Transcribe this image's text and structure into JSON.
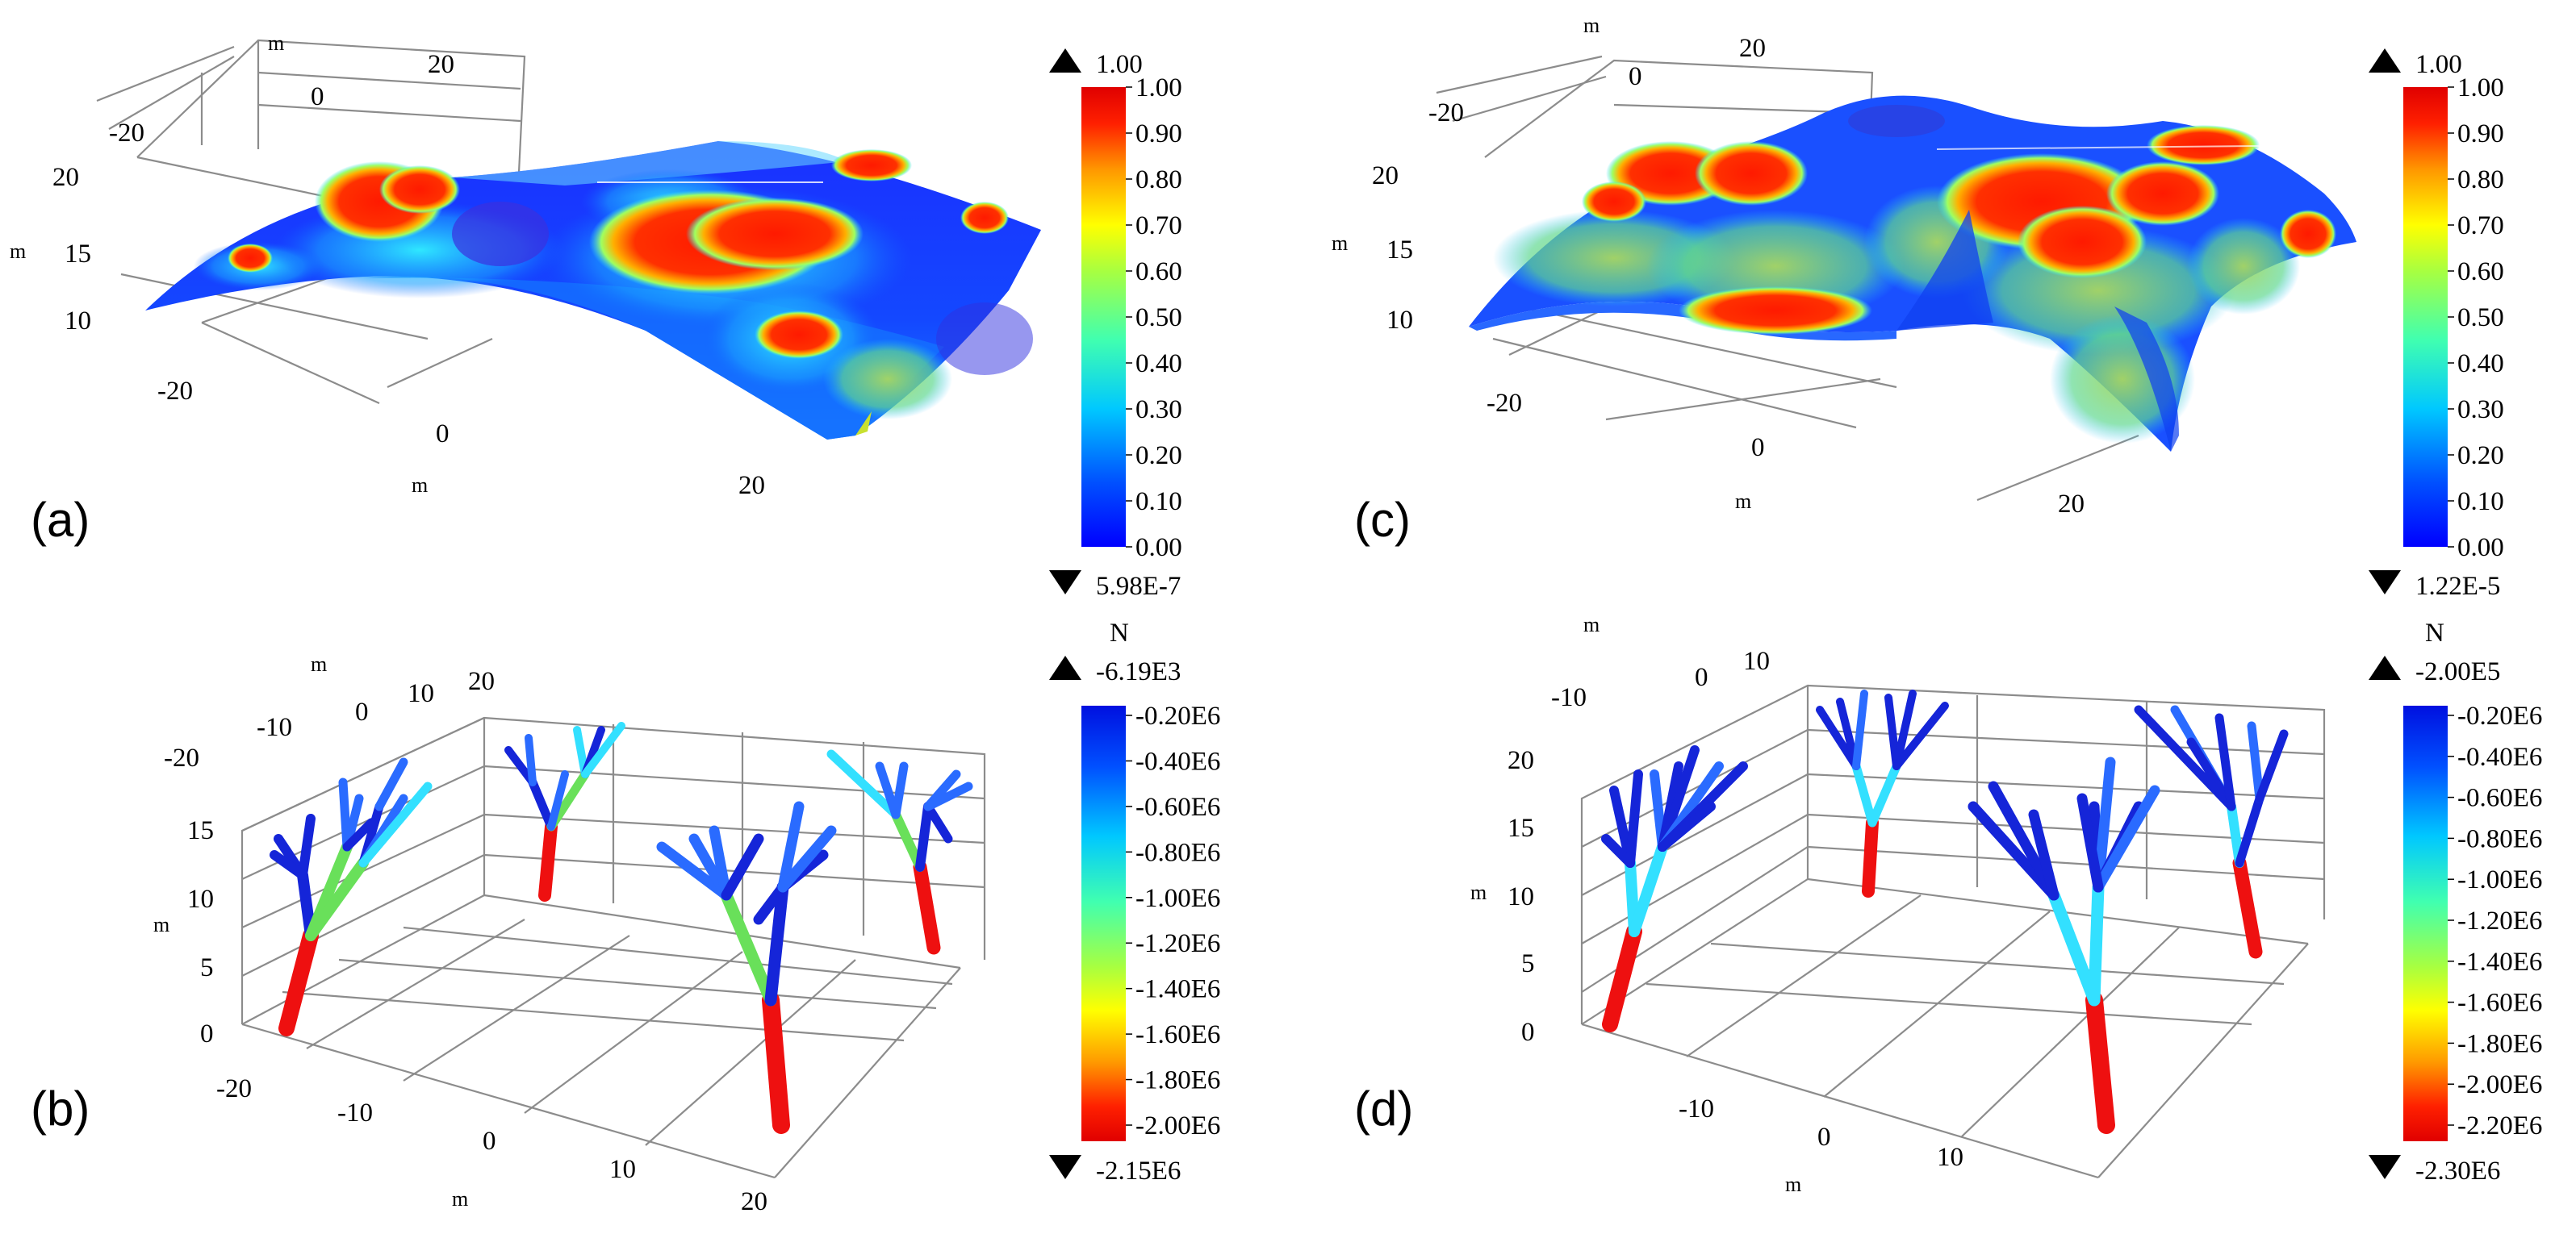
{
  "colors": {
    "jet": [
      "#00008f",
      "#0000ff",
      "#0080ff",
      "#00ffff",
      "#80ff80",
      "#ffff00",
      "#ff8000",
      "#ff0000",
      "#d40000"
    ],
    "gridline": "#8c8c8c",
    "shell_blue": "#1e3cff",
    "hot": "#ff2a00",
    "cyan": "#33e0ff",
    "green": "#69e05a",
    "mid_blue": "#2a6bff",
    "dark_blue": "#1525d8"
  },
  "panels": {
    "a": {
      "label": "(a)",
      "axes": {
        "unit": "m",
        "x_ticks": [
          "-20",
          "0",
          "20"
        ],
        "y_ticks": [
          "-20",
          "0",
          "20"
        ],
        "z_ticks": [
          "10",
          "15",
          "20"
        ]
      },
      "colorbar": {
        "unit": "",
        "top_value": "1.00",
        "bottom_value": "5.98E-7",
        "ticks": [
          "1.00",
          "0.90",
          "0.80",
          "0.70",
          "0.60",
          "0.50",
          "0.40",
          "0.30",
          "0.20",
          "0.10",
          "0.00"
        ]
      }
    },
    "b": {
      "label": "(b)",
      "axes": {
        "unit": "m",
        "x_ticks": [
          "-20",
          "-10",
          "0",
          "10",
          "20"
        ],
        "y_ticks": [
          "-20",
          "-10",
          "0",
          "10",
          "20"
        ],
        "z_ticks": [
          "0",
          "5",
          "10",
          "15"
        ]
      },
      "colorbar": {
        "unit": "N",
        "top_value": "-6.19E3",
        "bottom_value": "-2.15E6",
        "ticks": [
          "-0.20E6",
          "-0.40E6",
          "-0.60E6",
          "-0.80E6",
          "-1.00E6",
          "-1.20E6",
          "-1.40E6",
          "-1.60E6",
          "-1.80E6",
          "-2.00E6"
        ]
      }
    },
    "c": {
      "label": "(c)",
      "axes": {
        "unit": "m",
        "x_ticks": [
          "-20",
          "0",
          "20"
        ],
        "y_ticks": [
          "-20",
          "0",
          "20"
        ],
        "z_ticks": [
          "10",
          "15",
          "20"
        ]
      },
      "colorbar": {
        "unit": "",
        "top_value": "1.00",
        "bottom_value": "1.22E-5",
        "ticks": [
          "1.00",
          "0.90",
          "0.80",
          "0.70",
          "0.60",
          "0.50",
          "0.40",
          "0.30",
          "0.20",
          "0.10",
          "0.00"
        ]
      }
    },
    "d": {
      "label": "(d)",
      "axes": {
        "unit": "m",
        "x_ticks": [
          "-10",
          "0",
          "10"
        ],
        "y_ticks": [
          "-10",
          "0",
          "10"
        ],
        "z_ticks": [
          "0",
          "5",
          "10",
          "15",
          "20"
        ]
      },
      "colorbar": {
        "unit": "N",
        "top_value": "-2.00E5",
        "bottom_value": "-2.30E6",
        "ticks": [
          "-0.20E6",
          "-0.40E6",
          "-0.60E6",
          "-0.80E6",
          "-1.00E6",
          "-1.20E6",
          "-1.40E6",
          "-1.60E6",
          "-1.80E6",
          "-2.00E6",
          "-2.20E6"
        ]
      }
    }
  }
}
